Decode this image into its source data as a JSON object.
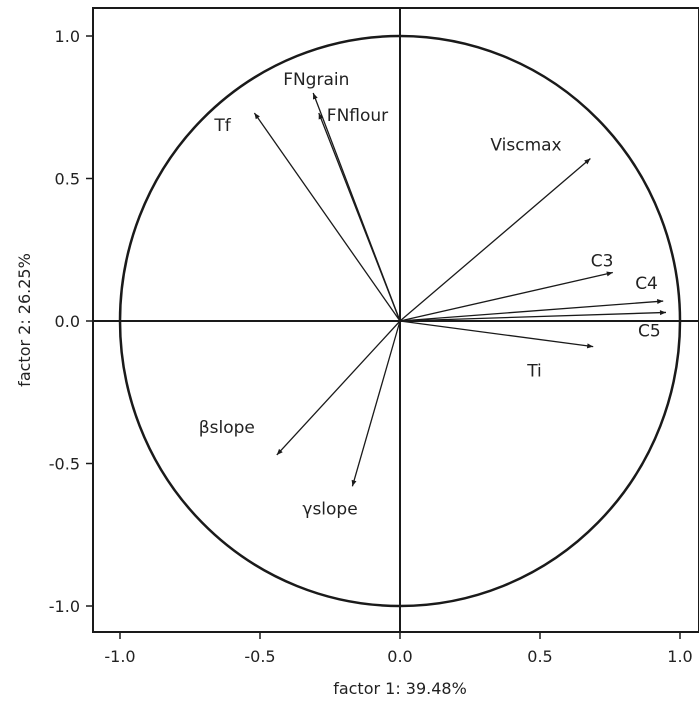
{
  "chart_data": {
    "type": "scatter",
    "subtype": "pca-correlation-circle",
    "title": "",
    "xlabel": "factor 1: 39.48%",
    "ylabel": "factor 2: 26.25%",
    "xlim": [
      -1.1,
      1.1
    ],
    "ylim": [
      -1.1,
      1.05
    ],
    "x_ticks": [
      -1.0,
      -0.5,
      0.0,
      0.5,
      1.0
    ],
    "y_ticks": [
      -1.0,
      -0.5,
      0.0,
      0.5,
      1.0
    ],
    "x_tick_labels": [
      "-1.0",
      "-0.5",
      "0.0",
      "0.5",
      "1.0"
    ],
    "y_tick_labels": [
      "-1.0",
      "-0.5",
      "0.0",
      "0.5",
      "1.0"
    ],
    "grid": false,
    "unit_circle": true,
    "colors": {
      "line": "#1a1a1a",
      "axis": "#1a1a1a",
      "text": "#222222"
    },
    "points": [
      {
        "name": "FNgrain",
        "x": -0.31,
        "y": 0.8
      },
      {
        "name": "FNflour",
        "x": -0.29,
        "y": 0.73
      },
      {
        "name": "Tf",
        "x": -0.52,
        "y": 0.73
      },
      {
        "name": "Viscmax",
        "x": 0.68,
        "y": 0.57
      },
      {
        "name": "C3",
        "x": 0.76,
        "y": 0.17
      },
      {
        "name": "C4",
        "x": 0.94,
        "y": 0.07
      },
      {
        "name": "C5",
        "x": 0.95,
        "y": 0.03
      },
      {
        "name": "Ti",
        "x": 0.69,
        "y": -0.09
      },
      {
        "name": "βslope",
        "x": -0.44,
        "y": -0.47
      },
      {
        "name": "γslope",
        "x": -0.17,
        "y": -0.58
      }
    ]
  }
}
